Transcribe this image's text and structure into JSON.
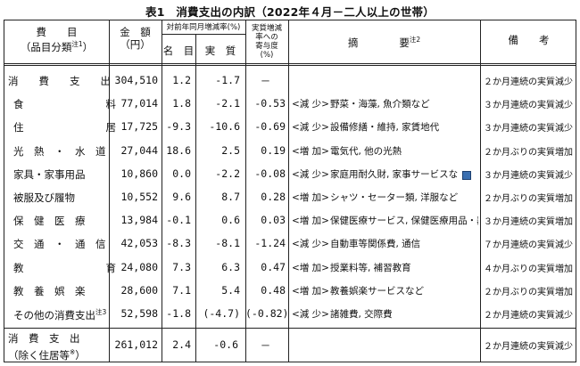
{
  "title": "表1　消費支出の内訳（2022年４月－二人以上の世帯）",
  "headers": {
    "col1_line1": "費　　目",
    "col1_line2": "（品目分類",
    "col1_note": "注1",
    "col1_close": "）",
    "amount_line1": "金　額",
    "amount_line2": "（円）",
    "change_group": "対前年同月増減率(%)",
    "nominal": "名　目",
    "real": "実　質",
    "contrib_line1": "実質増減",
    "contrib_line2": "率への",
    "contrib_line3": "寄与度",
    "contrib_line4": "(%)",
    "summary": "摘　　　　要",
    "summary_note": "注2",
    "remarks": "備　　考"
  },
  "rows": [
    {
      "name": "消　　費　　支　　出",
      "amount": "304,510",
      "nominal": "1.2",
      "real": "-1.7",
      "contrib": "－",
      "tag": "",
      "summary": "",
      "remark": "２か月連続の実質減少"
    },
    {
      "name": "食　　　　　　　　料",
      "amount": "77,014",
      "nominal": "1.8",
      "real": "-2.1",
      "contrib": "-0.53",
      "tag": "<減 少>",
      "summary": "野菜・海藻, 魚介類など",
      "remark": "３か月連続の実質減少"
    },
    {
      "name": "住　　　　　　　　居",
      "amount": "17,725",
      "nominal": "-9.3",
      "real": "-10.6",
      "contrib": "-0.69",
      "tag": "<減 少>",
      "summary": "設備修繕・維持, 家賃地代",
      "remark": "３か月連続の実質減少"
    },
    {
      "name": "光　熱　・　水　道",
      "amount": "27,044",
      "nominal": "18.6",
      "real": "2.5",
      "contrib": "0.19",
      "tag": "<増 加>",
      "summary": "電気代, 他の光熱",
      "remark": "２か月ぶりの実質増加"
    },
    {
      "name": "家具・家事用品",
      "amount": "10,860",
      "nominal": "0.0",
      "real": "-2.2",
      "contrib": "-0.08",
      "tag": "<減 少>",
      "summary": "家庭用耐久財, 家事サービスな",
      "remark": "３か月連続の実質減少"
    },
    {
      "name": "被服及び履物",
      "amount": "10,552",
      "nominal": "9.6",
      "real": "8.7",
      "contrib": "0.28",
      "tag": "<増 加>",
      "summary": "シャツ・セーター類, 洋服など",
      "remark": "２か月ぶりの実質増加"
    },
    {
      "name": "保　健　医　療",
      "amount": "13,984",
      "nominal": "-0.1",
      "real": "0.6",
      "contrib": "0.03",
      "tag": "<増 加>",
      "summary": "保健医療サービス, 保健医療用品・器具",
      "remark": "３か月連続の実質増加"
    },
    {
      "name": "交　通　・　通　信",
      "amount": "42,053",
      "nominal": "-8.3",
      "real": "-8.1",
      "contrib": "-1.24",
      "tag": "<減 少>",
      "summary": "自動車等関係費, 通信",
      "remark": "７か月連続の実質減少"
    },
    {
      "name": "教　　　　　　　　育",
      "amount": "24,080",
      "nominal": "7.3",
      "real": "6.3",
      "contrib": "0.47",
      "tag": "<増 加>",
      "summary": "授業料等, 補習教育",
      "remark": "４か月ぶりの実質増加"
    },
    {
      "name": "教　養　娯　楽",
      "amount": "28,600",
      "nominal": "7.1",
      "real": "5.4",
      "contrib": "0.48",
      "tag": "<増 加>",
      "summary": "教養娯楽サービスなど",
      "remark": "２か月ぶりの実質増加"
    },
    {
      "name": "その他の消費支出",
      "name_note": "注3",
      "amount": "52,598",
      "nominal": "-1.8",
      "real": "(-4.7)",
      "contrib": "(-0.82)",
      "tag": "<減 少>",
      "summary": "諸雑費, 交際費",
      "remark": "２か月連続の実質減少"
    }
  ],
  "footer_row": {
    "name_line1": "消　費　支　出",
    "name_line2": "（除く住居等",
    "name_note": "※",
    "name_close": "）",
    "amount": "261,012",
    "nominal": "2.4",
    "real": "-0.6",
    "contrib": "－",
    "remark": "２か月連続の実質減少"
  }
}
